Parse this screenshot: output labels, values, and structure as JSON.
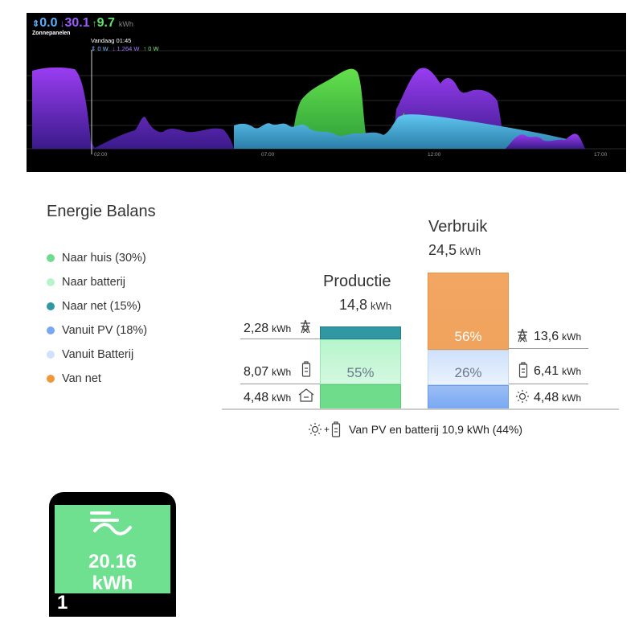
{
  "graph": {
    "totals": [
      {
        "arrow": "⇕",
        "value": "0.0",
        "color": "#5ab0ff"
      },
      {
        "arrow": "↓",
        "value": "30.1",
        "color": "#9b5cff"
      },
      {
        "arrow": "↑",
        "value": "9.7",
        "color": "#5fe36a"
      }
    ],
    "unit": "kWh",
    "subtitle": "Zonnepanelen",
    "cursor_time": "Vandaag 01:45",
    "cursor_values": [
      {
        "text": "⇕ 0 W",
        "color": "#7ab8ff"
      },
      {
        "text": "↓ 1.264 W",
        "color": "#a97bff"
      },
      {
        "text": "↑ 0 W",
        "color": "#7eea8a"
      }
    ],
    "x_ticks": [
      "02:00",
      "07:00",
      "12:00",
      "17:00"
    ]
  },
  "balance": {
    "title": "Energie Balans",
    "legend": [
      {
        "label": "Naar huis (30%)",
        "color": "#6fdc8c"
      },
      {
        "label": "Naar batterij",
        "color": "#b6f5cc"
      },
      {
        "label": "Naar net (15%)",
        "color": "#2f98a3"
      },
      {
        "label": "Vanuit PV (18%)",
        "color": "#79a8f2"
      },
      {
        "label": "Vanuit Batterij",
        "color": "#cfe1fb"
      },
      {
        "label": "Van net",
        "color": "#f0973a"
      }
    ],
    "production": {
      "title": "Productie",
      "value": "14,8",
      "unit": "kWh",
      "percent": "55%",
      "net": {
        "value": "2,28",
        "unit": "kWh",
        "icon": "grid-pylon-icon"
      },
      "battery": {
        "value": "8,07",
        "unit": "kWh",
        "icon": "battery-icon"
      },
      "home": {
        "value": "4,48",
        "unit": "kWh",
        "icon": "home-icon"
      }
    },
    "consumption": {
      "title": "Verbruik",
      "value": "24,5",
      "unit": "kWh",
      "grid_percent": "56%",
      "self_percent": "26%",
      "grid": {
        "value": "13,6",
        "unit": "kWh",
        "icon": "grid-pylon-icon"
      },
      "battery": {
        "value": "6,41",
        "unit": "kWh",
        "icon": "battery-icon"
      },
      "pv": {
        "value": "4,48",
        "unit": "kWh",
        "icon": "sun-icon"
      }
    },
    "summary": "Van PV en batterij 10,9 kWh (44%)"
  },
  "meter": {
    "value": "20.16",
    "unit": "kWh",
    "index": "1"
  }
}
